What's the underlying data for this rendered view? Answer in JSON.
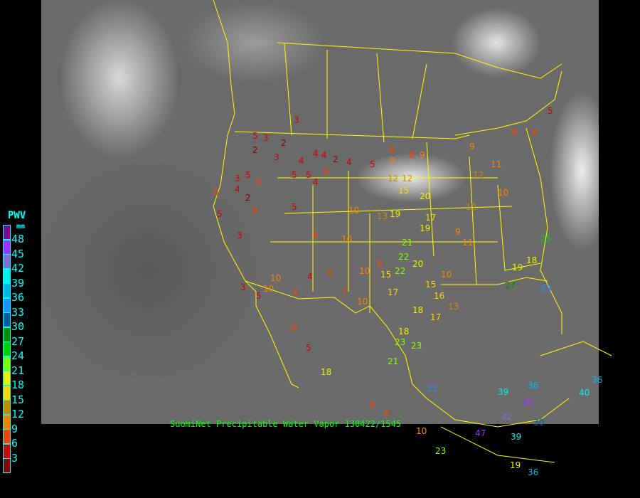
{
  "caption": "SuomiNet Precipitable Water Vapor 130422/1545",
  "legend": {
    "title": "PWV",
    "unit": "mm",
    "labels": [
      "48",
      "45",
      "42",
      "39",
      "36",
      "33",
      "30",
      "27",
      "24",
      "21",
      "18",
      "15",
      "12",
      "9",
      "6",
      "3"
    ],
    "colors": [
      "#8b008b",
      "#9b30ff",
      "#8070d0",
      "#00f0f0",
      "#00b8e8",
      "#1e90ff",
      "#005f9f",
      "#008f00",
      "#00d000",
      "#80ff00",
      "#f0f000",
      "#ffd700",
      "#c88a00",
      "#ff8000",
      "#ff4000",
      "#d00000",
      "#8b0000"
    ]
  },
  "border_color": "#ffff00",
  "stations": [
    "3",
    "5",
    "3",
    "2",
    "3",
    "4",
    "2",
    "4",
    "5",
    "2",
    "4",
    "5",
    "5",
    "6",
    "4",
    "3",
    "6",
    "5",
    "9",
    "8",
    "9",
    "12",
    "12",
    "20",
    "19",
    "15",
    "6",
    "10",
    "10",
    "4",
    "6",
    "3",
    "6",
    "10",
    "10",
    "2",
    "4",
    "5",
    "6",
    "7",
    "10",
    "8",
    "15",
    "17",
    "22",
    "22",
    "21",
    "20",
    "19",
    "17",
    "16",
    "10",
    "9",
    "11",
    "12",
    "15",
    "13",
    "18",
    "18",
    "17",
    "23",
    "23",
    "33",
    "39",
    "42",
    "45",
    "47",
    "23",
    "39",
    "36",
    "30",
    "19",
    "36",
    "36",
    "21",
    "18",
    "8",
    "6",
    "10",
    "13",
    "10",
    "6",
    "5",
    "4",
    "5",
    "3",
    "6",
    "5",
    "6",
    "9",
    "11",
    "19",
    "18",
    "25",
    "27",
    "33",
    "40",
    "12",
    "10",
    "5",
    "8",
    "6"
  ]
}
